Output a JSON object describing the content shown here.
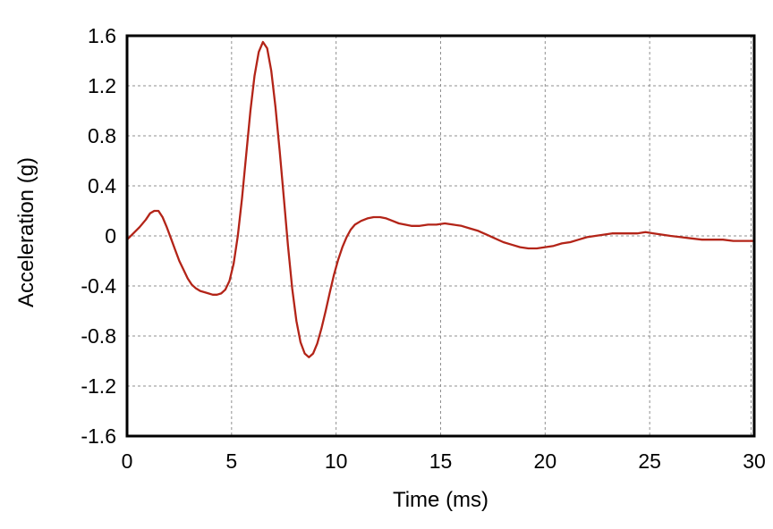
{
  "chart_data": {
    "type": "line",
    "xlabel": "Time (ms)",
    "ylabel": "Acceleration (g)",
    "xlim": [
      0,
      30
    ],
    "ylim": [
      -1.6,
      1.6
    ],
    "x_ticks": [
      0,
      5,
      10,
      15,
      20,
      25,
      30
    ],
    "x_tick_labels": [
      "0",
      "5",
      "10",
      "15",
      "20",
      "25",
      "30"
    ],
    "y_ticks": [
      -1.6,
      -1.2,
      -0.8,
      -0.4,
      0,
      0.4,
      0.8,
      1.2,
      1.6
    ],
    "y_tick_labels": [
      "-1.6",
      "-1.2",
      "-0.8",
      "-0.4",
      "0",
      "0.4",
      "0.8",
      "1.2",
      "1.6"
    ],
    "grid": "dashed-gray-major-only",
    "legend": "none",
    "colors": {
      "line": "#b32418",
      "grid": "#8f8f8f",
      "frame": "#000000",
      "background": "#ffffff",
      "text": "#000000"
    },
    "series": [
      {
        "name": "acceleration",
        "color": "#b32418",
        "points": [
          [
            0.0,
            -0.03
          ],
          [
            0.3,
            0.02
          ],
          [
            0.6,
            0.07
          ],
          [
            0.9,
            0.13
          ],
          [
            1.1,
            0.18
          ],
          [
            1.3,
            0.2
          ],
          [
            1.5,
            0.2
          ],
          [
            1.7,
            0.15
          ],
          [
            1.9,
            0.07
          ],
          [
            2.1,
            -0.02
          ],
          [
            2.3,
            -0.11
          ],
          [
            2.5,
            -0.2
          ],
          [
            2.7,
            -0.27
          ],
          [
            2.9,
            -0.34
          ],
          [
            3.1,
            -0.39
          ],
          [
            3.3,
            -0.42
          ],
          [
            3.5,
            -0.44
          ],
          [
            3.7,
            -0.45
          ],
          [
            3.9,
            -0.46
          ],
          [
            4.1,
            -0.47
          ],
          [
            4.3,
            -0.47
          ],
          [
            4.5,
            -0.46
          ],
          [
            4.7,
            -0.43
          ],
          [
            4.9,
            -0.36
          ],
          [
            5.1,
            -0.22
          ],
          [
            5.3,
            0.0
          ],
          [
            5.5,
            0.3
          ],
          [
            5.7,
            0.65
          ],
          [
            5.9,
            1.0
          ],
          [
            6.1,
            1.28
          ],
          [
            6.3,
            1.47
          ],
          [
            6.5,
            1.55
          ],
          [
            6.7,
            1.5
          ],
          [
            6.9,
            1.32
          ],
          [
            7.1,
            1.03
          ],
          [
            7.3,
            0.68
          ],
          [
            7.5,
            0.3
          ],
          [
            7.7,
            -0.08
          ],
          [
            7.9,
            -0.42
          ],
          [
            8.1,
            -0.68
          ],
          [
            8.3,
            -0.85
          ],
          [
            8.5,
            -0.94
          ],
          [
            8.7,
            -0.97
          ],
          [
            8.9,
            -0.94
          ],
          [
            9.1,
            -0.86
          ],
          [
            9.3,
            -0.74
          ],
          [
            9.5,
            -0.6
          ],
          [
            9.7,
            -0.45
          ],
          [
            9.9,
            -0.31
          ],
          [
            10.1,
            -0.19
          ],
          [
            10.3,
            -0.09
          ],
          [
            10.5,
            -0.01
          ],
          [
            10.7,
            0.05
          ],
          [
            10.9,
            0.09
          ],
          [
            11.2,
            0.12
          ],
          [
            11.5,
            0.14
          ],
          [
            11.8,
            0.15
          ],
          [
            12.1,
            0.15
          ],
          [
            12.4,
            0.14
          ],
          [
            12.7,
            0.12
          ],
          [
            13.0,
            0.1
          ],
          [
            13.3,
            0.09
          ],
          [
            13.6,
            0.08
          ],
          [
            14.0,
            0.08
          ],
          [
            14.4,
            0.09
          ],
          [
            14.8,
            0.09
          ],
          [
            15.2,
            0.1
          ],
          [
            15.6,
            0.09
          ],
          [
            16.0,
            0.08
          ],
          [
            16.4,
            0.06
          ],
          [
            16.8,
            0.04
          ],
          [
            17.2,
            0.01
          ],
          [
            17.6,
            -0.02
          ],
          [
            18.0,
            -0.05
          ],
          [
            18.4,
            -0.07
          ],
          [
            18.8,
            -0.09
          ],
          [
            19.2,
            -0.1
          ],
          [
            19.6,
            -0.1
          ],
          [
            20.0,
            -0.09
          ],
          [
            20.4,
            -0.08
          ],
          [
            20.8,
            -0.06
          ],
          [
            21.2,
            -0.05
          ],
          [
            21.6,
            -0.03
          ],
          [
            22.0,
            -0.01
          ],
          [
            22.4,
            0.0
          ],
          [
            22.8,
            0.01
          ],
          [
            23.2,
            0.02
          ],
          [
            23.6,
            0.02
          ],
          [
            24.0,
            0.02
          ],
          [
            24.4,
            0.02
          ],
          [
            24.8,
            0.03
          ],
          [
            25.2,
            0.02
          ],
          [
            25.6,
            0.01
          ],
          [
            26.0,
            0.0
          ],
          [
            26.5,
            -0.01
          ],
          [
            27.0,
            -0.02
          ],
          [
            27.5,
            -0.03
          ],
          [
            28.0,
            -0.03
          ],
          [
            28.5,
            -0.03
          ],
          [
            29.0,
            -0.04
          ],
          [
            29.5,
            -0.04
          ],
          [
            30.0,
            -0.04
          ]
        ]
      }
    ]
  }
}
